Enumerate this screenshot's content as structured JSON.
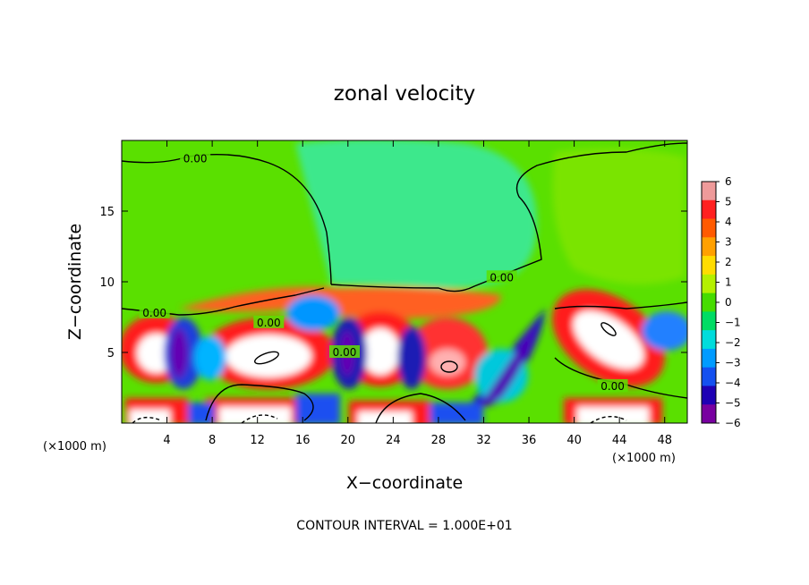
{
  "chart_data": {
    "type": "heatmap",
    "title": "zonal velocity",
    "xlabel": "X−coordinate",
    "ylabel": "Z−coordinate",
    "x_unit_label_left": "(×1000 m)",
    "x_unit_label_right": "(×1000 m)",
    "xlim": [
      0,
      50
    ],
    "ylim": [
      0,
      20
    ],
    "x_ticks": [
      4,
      8,
      12,
      16,
      20,
      24,
      28,
      32,
      36,
      40,
      44,
      48
    ],
    "x_tick_labels": [
      "4",
      "8",
      "12",
      "16",
      "20",
      "24",
      "28",
      "32",
      "36",
      "40",
      "44",
      "48"
    ],
    "y_ticks": [
      5,
      10,
      15
    ],
    "y_tick_labels": [
      "5",
      "10",
      "15"
    ],
    "colorbar": {
      "min": -6,
      "max": 6,
      "labels": [
        "6",
        "5",
        "4",
        "3",
        "2",
        "1",
        "0",
        "−1",
        "−2",
        "−3",
        "−4",
        "−5",
        "−6"
      ],
      "colors": [
        "#ee9a9a",
        "#ff2020",
        "#ff5a00",
        "#ffa000",
        "#ffdc00",
        "#b4f000",
        "#46dc00",
        "#00dc64",
        "#00dcdc",
        "#009bff",
        "#1450f0",
        "#1e00b4",
        "#7800a0"
      ]
    },
    "contour_labels": [
      {
        "text": "0.00",
        "x": 6.5,
        "z": 18.7
      },
      {
        "text": "0.00",
        "x": 2.9,
        "z": 7.8
      },
      {
        "text": "0.00",
        "x": 13.0,
        "z": 7.1
      },
      {
        "text": "0.00",
        "x": 19.7,
        "z": 5.0
      },
      {
        "text": "0.00",
        "x": 33.6,
        "z": 10.3
      },
      {
        "text": "0.00",
        "x": 43.4,
        "z": 2.6
      }
    ],
    "features": [
      {
        "kind": "positive_core",
        "x": 1.5,
        "z": 5.0
      },
      {
        "kind": "positive_core",
        "x": 12.0,
        "z": 4.5
      },
      {
        "kind": "positive_core",
        "x": 22.5,
        "z": 5.0
      },
      {
        "kind": "positive_core",
        "x": 29.0,
        "z": 4.0
      },
      {
        "kind": "positive_core",
        "x": 42.5,
        "z": 6.0
      },
      {
        "kind": "positive_core",
        "x": 4.5,
        "z": 0.4
      },
      {
        "kind": "positive_core",
        "x": 13.0,
        "z": 0.5
      },
      {
        "kind": "positive_core",
        "x": 23.0,
        "z": 0.5
      },
      {
        "kind": "positive_core",
        "x": 30.5,
        "z": 0.5
      },
      {
        "kind": "positive_core",
        "x": 43.5,
        "z": 0.7
      },
      {
        "kind": "negative_core",
        "x": 4.0,
        "z": 4.0
      },
      {
        "kind": "negative_core",
        "x": 8.0,
        "z": 4.0
      },
      {
        "kind": "negative_core",
        "x": 17.5,
        "z": 5.5
      },
      {
        "kind": "negative_core",
        "x": 26.5,
        "z": 4.0
      },
      {
        "kind": "negative_core",
        "x": 34.5,
        "z": 3.5
      },
      {
        "kind": "negative_core",
        "x": 37.0,
        "z": 6.0
      },
      {
        "kind": "negative_core",
        "x": 48.0,
        "z": 6.0
      },
      {
        "kind": "negative_core",
        "x": 19.0,
        "z": 0.8
      },
      {
        "kind": "negative_core",
        "x": 9.5,
        "z": 0.6
      },
      {
        "kind": "negative_core",
        "x": 1.0,
        "z": 1.0
      },
      {
        "kind": "negative_core",
        "x": 47.5,
        "z": 1.5
      }
    ],
    "grid": false,
    "legend": "colorbar right"
  },
  "caption": "CONTOUR INTERVAL = 1.000E+01"
}
